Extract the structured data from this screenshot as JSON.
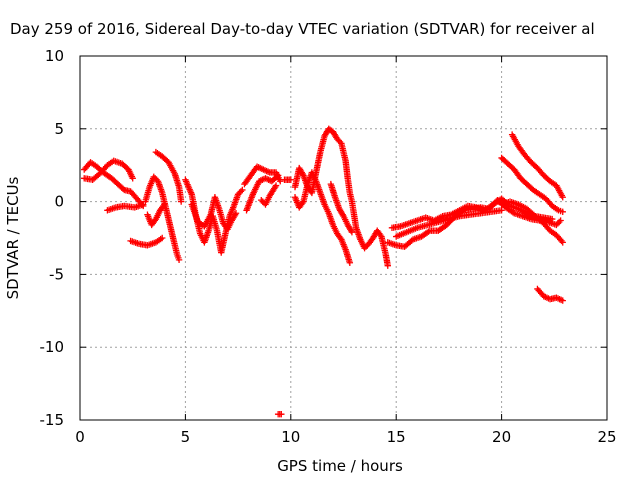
{
  "chart_data": {
    "type": "scatter",
    "title": "Day 259 of 2016, Sidereal Day-to-day VTEC variation (SDTVAR) for receiver al",
    "xlabel": "GPS time / hours",
    "ylabel": "SDTVAR / TECUs",
    "xlim": [
      0,
      25
    ],
    "ylim": [
      -15,
      10
    ],
    "xticks": [
      0,
      5,
      10,
      15,
      20,
      25
    ],
    "yticks": [
      -15,
      -10,
      -5,
      0,
      5,
      10
    ],
    "grid": true,
    "marker": "+",
    "color": "#ff0000",
    "series": [
      {
        "name": "SDTVAR",
        "tracks": [
          [
            [
              0.2,
              2.2
            ],
            [
              0.5,
              2.7
            ],
            [
              0.8,
              2.4
            ],
            [
              1.1,
              2.0
            ],
            [
              1.5,
              1.6
            ],
            [
              1.8,
              1.2
            ],
            [
              2.1,
              0.8
            ],
            [
              2.4,
              0.7
            ],
            [
              2.7,
              0.2
            ],
            [
              3.0,
              -0.3
            ]
          ],
          [
            [
              0.2,
              1.6
            ],
            [
              0.6,
              1.5
            ],
            [
              1.0,
              2.0
            ],
            [
              1.3,
              2.5
            ],
            [
              1.6,
              2.8
            ],
            [
              2.0,
              2.6
            ],
            [
              2.3,
              2.2
            ],
            [
              2.5,
              1.6
            ]
          ],
          [
            [
              1.3,
              -0.6
            ],
            [
              1.7,
              -0.4
            ],
            [
              2.1,
              -0.3
            ],
            [
              2.6,
              -0.4
            ],
            [
              3.0,
              -0.2
            ]
          ],
          [
            [
              2.4,
              -2.7
            ],
            [
              2.8,
              -2.9
            ],
            [
              3.2,
              -3.0
            ],
            [
              3.6,
              -2.8
            ],
            [
              3.9,
              -2.5
            ]
          ],
          [
            [
              3.1,
              0.0
            ],
            [
              3.3,
              1.0
            ],
            [
              3.5,
              1.7
            ],
            [
              3.7,
              1.4
            ],
            [
              3.9,
              0.6
            ],
            [
              4.1,
              -0.6
            ],
            [
              4.3,
              -1.8
            ],
            [
              4.5,
              -3.0
            ],
            [
              4.6,
              -3.6
            ],
            [
              4.7,
              -4.0
            ]
          ],
          [
            [
              3.6,
              3.4
            ],
            [
              3.9,
              3.1
            ],
            [
              4.2,
              2.7
            ],
            [
              4.5,
              1.9
            ],
            [
              4.7,
              1.0
            ],
            [
              4.8,
              0.0
            ]
          ],
          [
            [
              3.2,
              -0.9
            ],
            [
              3.4,
              -1.6
            ],
            [
              3.6,
              -1.2
            ],
            [
              3.8,
              -0.6
            ],
            [
              4.0,
              -0.2
            ]
          ],
          [
            [
              5.0,
              1.5
            ],
            [
              5.3,
              0.5
            ],
            [
              5.5,
              -1.0
            ],
            [
              5.7,
              -2.2
            ],
            [
              5.9,
              -2.8
            ],
            [
              6.1,
              -2.0
            ],
            [
              6.3,
              -1.0
            ],
            [
              6.5,
              -2.0
            ],
            [
              6.7,
              -3.5
            ],
            [
              6.9,
              -2.2
            ],
            [
              7.1,
              -1.0
            ],
            [
              7.3,
              -0.3
            ],
            [
              7.5,
              0.5
            ],
            [
              7.7,
              0.8
            ]
          ],
          [
            [
              5.3,
              -0.2
            ],
            [
              5.6,
              -1.4
            ],
            [
              5.9,
              -1.7
            ],
            [
              6.2,
              -0.9
            ],
            [
              6.4,
              0.3
            ],
            [
              6.6,
              -0.5
            ],
            [
              6.8,
              -1.5
            ],
            [
              7.0,
              -1.9
            ],
            [
              7.2,
              -1.3
            ],
            [
              7.4,
              -0.8
            ]
          ],
          [
            [
              7.8,
              1.2
            ],
            [
              8.1,
              1.8
            ],
            [
              8.4,
              2.4
            ],
            [
              8.7,
              2.2
            ],
            [
              9.0,
              2.0
            ],
            [
              9.3,
              2.0
            ],
            [
              9.5,
              1.4
            ]
          ],
          [
            [
              7.9,
              -0.6
            ],
            [
              8.2,
              0.5
            ],
            [
              8.5,
              1.4
            ],
            [
              8.8,
              1.6
            ],
            [
              9.1,
              1.4
            ],
            [
              9.4,
              1.8
            ]
          ],
          [
            [
              8.6,
              0.1
            ],
            [
              8.8,
              -0.2
            ],
            [
              9.0,
              0.4
            ],
            [
              9.3,
              1.1
            ]
          ],
          [
            [
              9.7,
              1.5
            ],
            [
              10.0,
              1.5
            ]
          ],
          [
            [
              10.2,
              1.0
            ],
            [
              10.4,
              2.3
            ],
            [
              10.6,
              1.8
            ],
            [
              10.8,
              1.0
            ],
            [
              11.0,
              0.6
            ],
            [
              11.2,
              2.0
            ],
            [
              11.4,
              3.4
            ],
            [
              11.6,
              4.5
            ],
            [
              11.8,
              5.0
            ],
            [
              12.0,
              4.8
            ],
            [
              12.2,
              4.3
            ],
            [
              12.4,
              4.0
            ],
            [
              12.6,
              2.8
            ],
            [
              12.7,
              1.6
            ],
            [
              12.8,
              0.6
            ],
            [
              12.9,
              0.0
            ],
            [
              13.0,
              -0.9
            ],
            [
              13.1,
              -1.8
            ],
            [
              13.3,
              -2.6
            ],
            [
              13.5,
              -3.2
            ],
            [
              13.7,
              -2.9
            ],
            [
              13.9,
              -2.5
            ],
            [
              14.1,
              -2.0
            ],
            [
              14.3,
              -2.4
            ],
            [
              14.5,
              -3.6
            ],
            [
              14.6,
              -4.4
            ]
          ],
          [
            [
              10.2,
              0.3
            ],
            [
              10.4,
              -0.4
            ],
            [
              10.6,
              0.0
            ],
            [
              10.8,
              1.2
            ],
            [
              11.0,
              2.0
            ],
            [
              11.2,
              1.4
            ],
            [
              11.4,
              0.6
            ],
            [
              11.6,
              -0.2
            ],
            [
              11.8,
              -0.8
            ],
            [
              12.0,
              -1.6
            ],
            [
              12.2,
              -2.2
            ],
            [
              12.4,
              -2.6
            ],
            [
              12.6,
              -3.3
            ],
            [
              12.8,
              -4.2
            ]
          ],
          [
            [
              11.9,
              1.2
            ],
            [
              12.1,
              0.3
            ],
            [
              12.3,
              -0.5
            ],
            [
              12.5,
              -1.0
            ],
            [
              12.7,
              -1.6
            ],
            [
              12.9,
              -2.1
            ]
          ],
          [
            [
              14.6,
              -2.8
            ],
            [
              15.0,
              -3.0
            ],
            [
              15.4,
              -3.1
            ],
            [
              15.8,
              -2.6
            ],
            [
              16.2,
              -2.4
            ],
            [
              16.6,
              -2.0
            ],
            [
              17.0,
              -2.0
            ],
            [
              17.4,
              -1.6
            ],
            [
              17.8,
              -1.0
            ],
            [
              18.2,
              -0.6
            ],
            [
              18.6,
              -0.5
            ],
            [
              19.0,
              -0.4
            ],
            [
              19.4,
              -0.5
            ],
            [
              19.8,
              0.1
            ],
            [
              20.2,
              -0.4
            ],
            [
              20.6,
              -0.8
            ],
            [
              21.0,
              -1.0
            ],
            [
              21.4,
              -1.2
            ],
            [
              21.8,
              -1.3
            ],
            [
              22.2,
              -1.4
            ],
            [
              22.6,
              -1.6
            ],
            [
              22.8,
              -1.3
            ]
          ],
          [
            [
              14.8,
              -1.8
            ],
            [
              15.2,
              -1.7
            ],
            [
              15.6,
              -1.5
            ],
            [
              16.0,
              -1.3
            ],
            [
              16.4,
              -1.1
            ],
            [
              16.8,
              -1.3
            ],
            [
              17.2,
              -1.0
            ],
            [
              17.6,
              -0.9
            ],
            [
              18.0,
              -0.6
            ],
            [
              18.4,
              -0.3
            ],
            [
              18.8,
              -0.4
            ],
            [
              19.2,
              -0.6
            ],
            [
              19.6,
              -0.2
            ],
            [
              20.0,
              0.2
            ],
            [
              20.4,
              -0.3
            ],
            [
              20.8,
              -0.5
            ],
            [
              21.2,
              -0.8
            ],
            [
              21.6,
              -1.0
            ],
            [
              22.0,
              -1.1
            ],
            [
              22.4,
              -1.2
            ]
          ],
          [
            [
              15.0,
              -2.4
            ],
            [
              15.5,
              -2.1
            ],
            [
              16.0,
              -1.8
            ],
            [
              16.5,
              -1.6
            ],
            [
              17.0,
              -1.4
            ],
            [
              17.5,
              -1.2
            ],
            [
              18.0,
              -1.0
            ],
            [
              18.5,
              -0.9
            ],
            [
              19.0,
              -0.8
            ],
            [
              19.5,
              -0.7
            ],
            [
              20.0,
              -0.6
            ]
          ],
          [
            [
              20.0,
              -0.2
            ],
            [
              20.4,
              0.0
            ],
            [
              20.8,
              -0.2
            ],
            [
              21.2,
              -0.5
            ],
            [
              21.6,
              -1.0
            ],
            [
              22.0,
              -1.5
            ],
            [
              22.3,
              -2.0
            ],
            [
              22.6,
              -2.3
            ],
            [
              22.9,
              -2.8
            ]
          ],
          [
            [
              20.5,
              4.6
            ],
            [
              20.8,
              3.8
            ],
            [
              21.1,
              3.2
            ],
            [
              21.4,
              2.7
            ],
            [
              21.7,
              2.3
            ],
            [
              22.0,
              1.8
            ],
            [
              22.3,
              1.4
            ],
            [
              22.6,
              1.1
            ],
            [
              22.9,
              0.3
            ]
          ],
          [
            [
              20.0,
              3.0
            ],
            [
              20.3,
              2.6
            ],
            [
              20.6,
              2.2
            ],
            [
              20.9,
              1.6
            ],
            [
              21.2,
              1.2
            ],
            [
              21.5,
              0.8
            ],
            [
              21.8,
              0.5
            ],
            [
              22.1,
              0.2
            ],
            [
              22.4,
              -0.3
            ],
            [
              22.7,
              -0.6
            ],
            [
              22.9,
              -0.7
            ]
          ],
          [
            [
              21.7,
              -6.0
            ],
            [
              22.0,
              -6.5
            ],
            [
              22.3,
              -6.7
            ],
            [
              22.6,
              -6.6
            ],
            [
              22.9,
              -6.8
            ]
          ],
          [
            [
              9.4,
              -14.6
            ],
            [
              9.55,
              -14.6
            ]
          ]
        ]
      }
    ]
  }
}
